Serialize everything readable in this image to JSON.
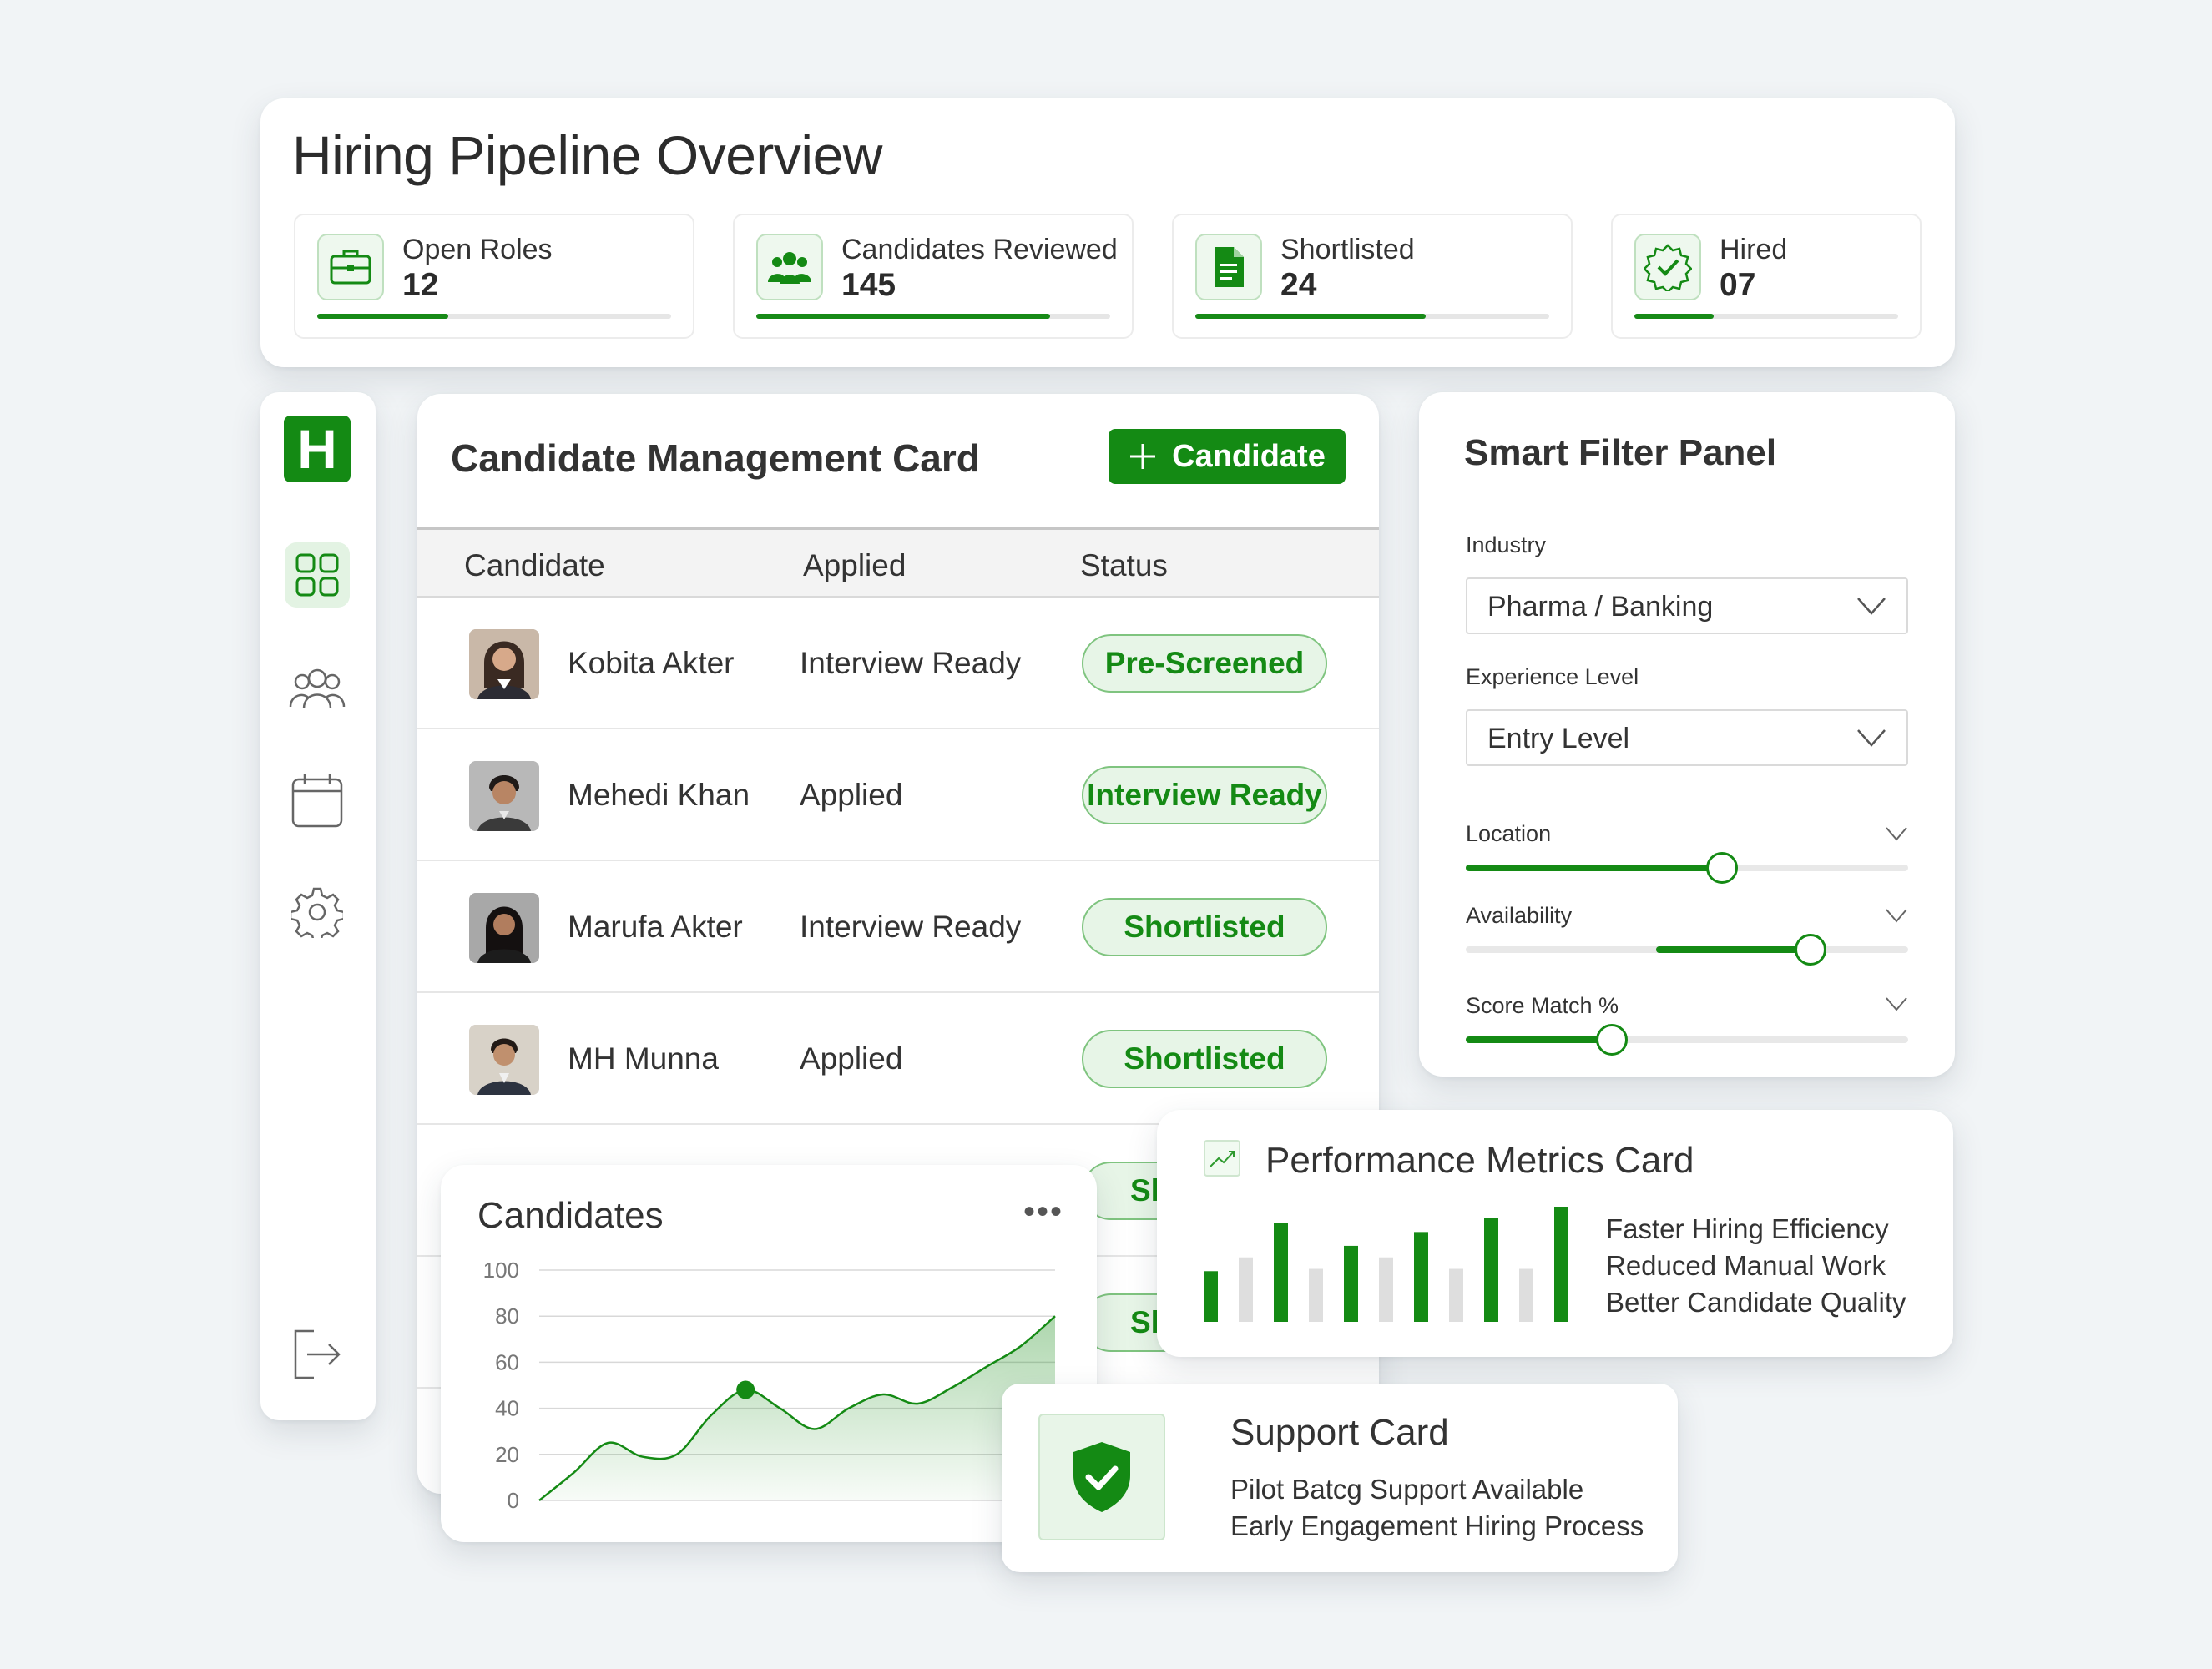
{
  "colors": {
    "accent": "#148a14",
    "accent_light": "#e7f5e7",
    "background": "#f1f4f6",
    "card": "#ffffff"
  },
  "overview": {
    "title": "Hiring Pipeline Overview",
    "stats": [
      {
        "label": "Open Roles",
        "value": "12",
        "icon": "briefcase-icon",
        "progress": 0.37
      },
      {
        "label": "Candidates Reviewed",
        "value": "145",
        "icon": "users-icon",
        "progress": 0.83
      },
      {
        "label": "Shortlisted",
        "value": "24",
        "icon": "document-icon",
        "progress": 0.65
      },
      {
        "label": "Hired",
        "value": "07",
        "icon": "verified-badge-icon",
        "progress": 0.3
      }
    ]
  },
  "sidebar": {
    "logo": "H",
    "items": [
      {
        "icon": "dashboard-grid-icon",
        "active": true
      },
      {
        "icon": "users-icon",
        "active": false
      },
      {
        "icon": "calendar-icon",
        "active": false
      },
      {
        "icon": "settings-gear-icon",
        "active": false
      },
      {
        "icon": "logout-icon",
        "active": false
      }
    ]
  },
  "candidate_card": {
    "title": "Candidate Management Card",
    "add_button": "Candidate",
    "columns": [
      "Candidate",
      "Applied",
      "Status"
    ],
    "rows": [
      {
        "name": "Kobita Akter",
        "applied": "Interview Ready",
        "status": "Pre-Screened"
      },
      {
        "name": "Mehedi Khan",
        "applied": "Applied",
        "status": "Interview Ready"
      },
      {
        "name": "Marufa Akter",
        "applied": "Interview Ready",
        "status": "Shortlisted"
      },
      {
        "name": "MH Munna",
        "applied": "Applied",
        "status": "Shortlisted"
      }
    ],
    "hidden_status": "Sh"
  },
  "filter": {
    "title": "Smart Filter Panel",
    "industry_label": "Industry",
    "industry_value": "Pharma / Banking",
    "experience_label": "Experience Level",
    "experience_value": "Entry Level",
    "sliders": [
      {
        "label": "Location",
        "from": 0,
        "to": 0.58
      },
      {
        "label": "Availability",
        "from": 0.43,
        "to": 0.78
      },
      {
        "label": "Score Match %",
        "from": 0,
        "to": 0.33
      }
    ]
  },
  "chart_card": {
    "title": "Candidates",
    "menu": "•••"
  },
  "chart_data": {
    "type": "area",
    "title": "Candidates",
    "y_ticks": [
      "100",
      "80",
      "60",
      "40",
      "20",
      "0"
    ],
    "ylim": [
      0,
      100
    ],
    "x": [
      0,
      1,
      2,
      3,
      4,
      5,
      6,
      7,
      8,
      9,
      10,
      11,
      12,
      13,
      14,
      15
    ],
    "values": [
      0,
      12,
      25,
      19,
      20,
      37,
      48,
      40,
      31,
      40,
      46,
      42,
      49,
      58,
      67,
      80
    ],
    "highlight_index": 6,
    "grid": true
  },
  "performance": {
    "title": "Performance Metrics Card",
    "metrics": [
      "Faster Hiring Efficiency",
      "Reduced Manual Work",
      "Better Candidate Quality"
    ],
    "bars": [
      {
        "value": 0.44,
        "highlight": true
      },
      {
        "value": 0.56,
        "highlight": false
      },
      {
        "value": 0.86,
        "highlight": true
      },
      {
        "value": 0.46,
        "highlight": false
      },
      {
        "value": 0.66,
        "highlight": true
      },
      {
        "value": 0.56,
        "highlight": false
      },
      {
        "value": 0.78,
        "highlight": true
      },
      {
        "value": 0.46,
        "highlight": false
      },
      {
        "value": 0.9,
        "highlight": true
      },
      {
        "value": 0.46,
        "highlight": false
      },
      {
        "value": 1.0,
        "highlight": true
      }
    ]
  },
  "support": {
    "title": "Support Card",
    "lines": [
      "Pilot Batcg Support Available",
      "Early Engagement Hiring Process"
    ],
    "icon": "shield-check-icon"
  }
}
